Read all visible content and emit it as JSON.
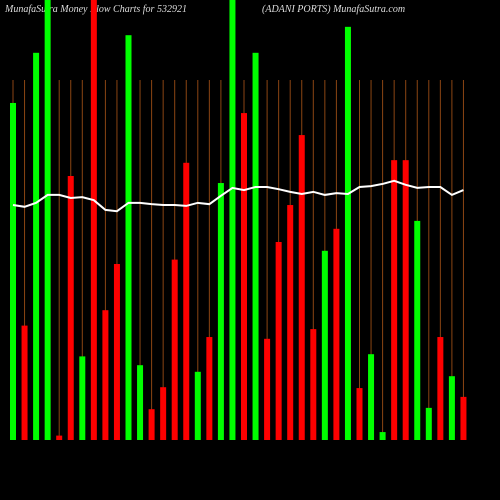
{
  "chart_data": {
    "type": "bar",
    "title": "MunafaSutra  Money Flow  Charts for 532921",
    "subtitle": "(ADANI PORTS) MunafaSutra.com",
    "values": [
      76.6,
      26,
      88,
      100,
      1,
      60,
      19,
      100,
      29.5,
      40,
      92,
      17,
      7,
      12,
      41,
      63,
      15.5,
      23.4,
      58.4,
      100,
      74.3,
      88,
      23,
      45,
      53.4,
      69.3,
      25.2,
      43,
      48,
      93.9,
      11.8,
      19.5,
      1.8,
      63.6,
      63.6,
      49.8,
      7.3,
      23.4,
      14.5,
      9.8
    ],
    "colors": [
      "#00ff00",
      "#ff0000",
      "#00ff00",
      "#00ff00",
      "#ff0000",
      "#ff0000",
      "#00ff00",
      "#ff0000",
      "#ff0000",
      "#ff0000",
      "#00ff00",
      "#00ff00",
      "#ff0000",
      "#ff0000",
      "#ff0000",
      "#ff0000",
      "#00ff00",
      "#ff0000",
      "#00ff00",
      "#00ff00",
      "#ff0000",
      "#00ff00",
      "#ff0000",
      "#ff0000",
      "#ff0000",
      "#ff0000",
      "#ff0000",
      "#00ff00",
      "#ff0000",
      "#00ff00",
      "#ff0000",
      "#00ff00",
      "#00ff00",
      "#ff0000",
      "#ff0000",
      "#00ff00",
      "#00ff00",
      "#ff0000",
      "#00ff00",
      "#ff0000"
    ],
    "line_values": [
      53.4,
      53,
      53.9,
      55.7,
      55.7,
      55,
      55.2,
      54.5,
      52.3,
      52,
      53.9,
      53.9,
      53.6,
      53.4,
      53.4,
      53.2,
      53.9,
      53.6,
      55.5,
      57.3,
      56.8,
      57.5,
      57.5,
      57,
      56.4,
      55.9,
      56.4,
      55.7,
      56.1,
      55.9,
      57.5,
      57.7,
      58.2,
      58.9,
      58,
      57.3,
      57.5,
      57.5,
      55.7,
      56.8
    ],
    "line_color": "#ffffff",
    "ylim": [
      0,
      100
    ]
  }
}
